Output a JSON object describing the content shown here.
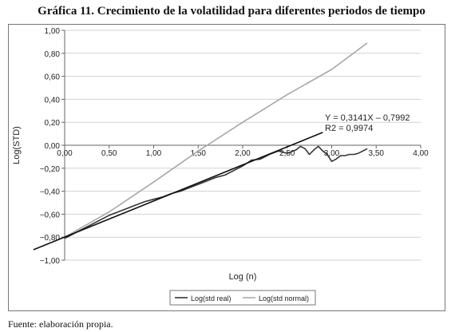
{
  "title": "Gráfica 11. Crecimiento de la volatilidad para diferentes periodos de tiempo",
  "source": "Fuente: elaboración propia.",
  "chart_data": {
    "type": "line",
    "xlabel": "Log (n)",
    "ylabel": "Log(STD)",
    "xlim": [
      0,
      4
    ],
    "ylim": [
      -1,
      1
    ],
    "x_ticks": [
      "0,00",
      "0,50",
      "1,00",
      "1,50",
      "2,00",
      "2,50",
      "3,00",
      "3,50",
      "4,00"
    ],
    "y_ticks": [
      "1,00",
      "0,80",
      "0,60",
      "0,40",
      "0,20",
      "0,00",
      "−0,20",
      "−0,40",
      "−0,60",
      "−0,80",
      "−1,00"
    ],
    "grid": "horizontal",
    "legend_position": "bottom",
    "series": [
      {
        "name": "Log(std real)",
        "color": "#333333",
        "points": [
          [
            0,
            -0.81
          ],
          [
            0.1,
            -0.77
          ],
          [
            0.2,
            -0.73
          ],
          [
            0.3,
            -0.69
          ],
          [
            0.4,
            -0.65
          ],
          [
            0.5,
            -0.61
          ],
          [
            0.6,
            -0.58
          ],
          [
            0.7,
            -0.55
          ],
          [
            0.8,
            -0.52
          ],
          [
            0.9,
            -0.49
          ],
          [
            1.0,
            -0.47
          ],
          [
            1.1,
            -0.45
          ],
          [
            1.2,
            -0.42
          ],
          [
            1.3,
            -0.4
          ],
          [
            1.4,
            -0.37
          ],
          [
            1.5,
            -0.34
          ],
          [
            1.6,
            -0.31
          ],
          [
            1.7,
            -0.28
          ],
          [
            1.8,
            -0.26
          ],
          [
            1.9,
            -0.22
          ],
          [
            2.0,
            -0.18
          ],
          [
            2.1,
            -0.13
          ],
          [
            2.2,
            -0.12
          ],
          [
            2.3,
            -0.08
          ],
          [
            2.4,
            -0.05
          ],
          [
            2.5,
            -0.07
          ],
          [
            2.6,
            -0.04
          ],
          [
            2.65,
            -0.01
          ],
          [
            2.7,
            -0.03
          ],
          [
            2.75,
            -0.08
          ],
          [
            2.8,
            -0.04
          ],
          [
            2.85,
            -0.01
          ],
          [
            2.9,
            -0.05
          ],
          [
            2.95,
            -0.08
          ],
          [
            3.0,
            -0.14
          ],
          [
            3.05,
            -0.12
          ],
          [
            3.1,
            -0.09
          ],
          [
            3.15,
            -0.09
          ],
          [
            3.2,
            -0.08
          ],
          [
            3.25,
            -0.08
          ],
          [
            3.3,
            -0.07
          ],
          [
            3.35,
            -0.05
          ],
          [
            3.4,
            -0.03
          ]
        ]
      },
      {
        "name": "Log(std normal)",
        "color": "#a8a8a8",
        "points": [
          [
            0,
            -0.8
          ],
          [
            0.5,
            -0.58
          ],
          [
            1.0,
            -0.32
          ],
          [
            1.5,
            -0.05
          ],
          [
            2.0,
            0.2
          ],
          [
            2.5,
            0.44
          ],
          [
            3.0,
            0.66
          ],
          [
            3.4,
            0.89
          ]
        ]
      }
    ],
    "trendline": {
      "equation": "Y = 0,3141X – 0,7992",
      "r2": "R2 = 0,9974",
      "slope": 0.3141,
      "intercept": -0.7992,
      "x_range": [
        -0.35,
        2.9
      ],
      "color": "#111111"
    }
  }
}
